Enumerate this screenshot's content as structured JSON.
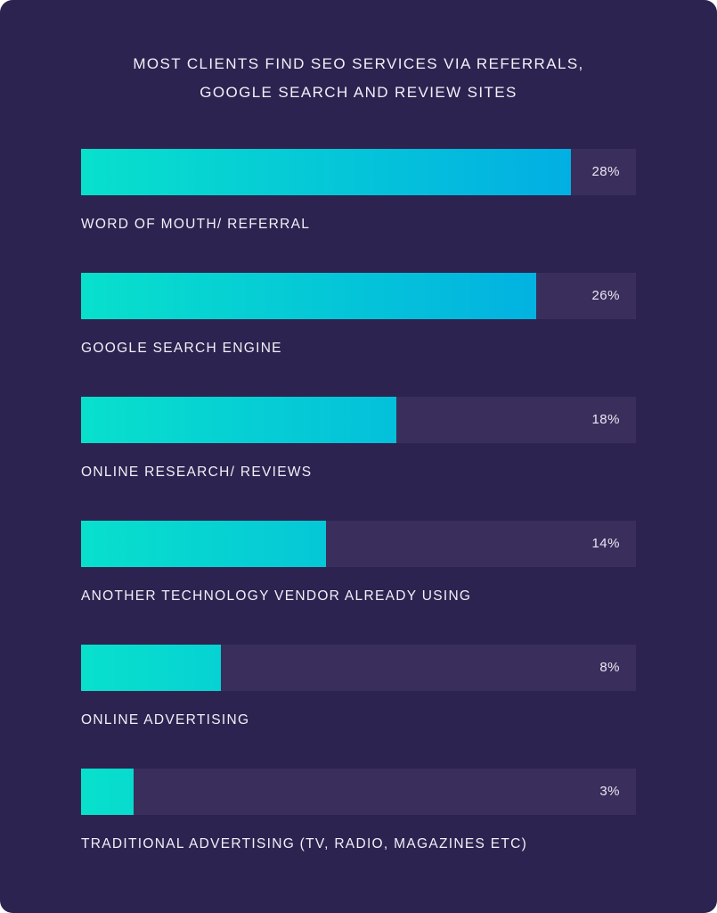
{
  "chart_data": {
    "type": "bar",
    "orientation": "horizontal",
    "title": "MOST CLIENTS FIND SEO SERVICES VIA REFERRALS, GOOGLE SEARCH AND REVIEW SITES",
    "title_lines": [
      "MOST CLIENTS FIND SEO SERVICES VIA REFERRALS,",
      "GOOGLE SEARCH AND REVIEW SITES"
    ],
    "categories": [
      "WORD OF MOUTH/ REFERRAL",
      "GOOGLE SEARCH ENGINE",
      "ONLINE RESEARCH/ REVIEWS",
      "ANOTHER TECHNOLOGY VENDOR ALREADY USING",
      "ONLINE ADVERTISING",
      "TRADITIONAL ADVERTISING (TV, RADIO, MAGAZINES ETC)"
    ],
    "values": [
      28,
      26,
      18,
      14,
      8,
      3
    ],
    "value_labels": [
      "28%",
      "26%",
      "18%",
      "14%",
      "8%",
      "3%"
    ],
    "xlim": [
      0,
      31.7
    ],
    "grid": false,
    "legend": "none",
    "colors": {
      "background": "#2d2350",
      "track": "#3a2f5c",
      "bar_gradient_start": "#08e0cc",
      "bar_gradient_end": "#01a8e6",
      "text": "#f2f0f8"
    }
  }
}
